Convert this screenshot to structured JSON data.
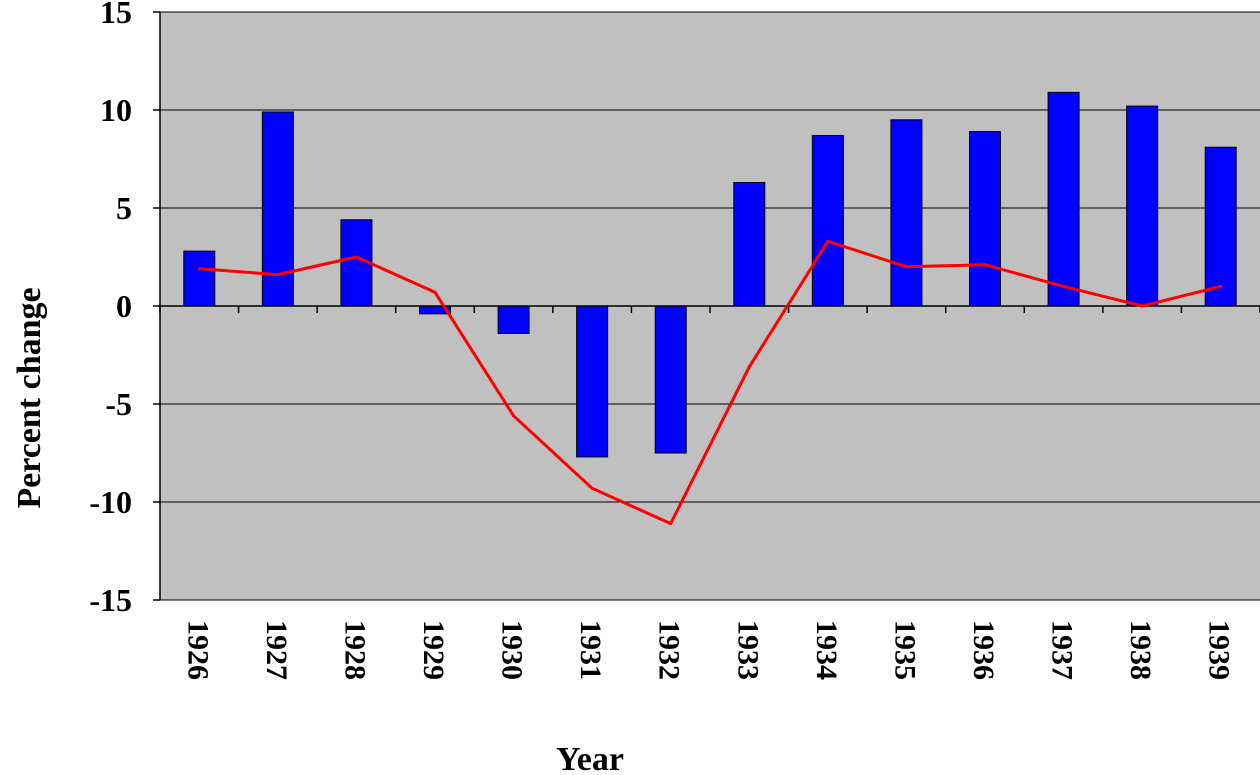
{
  "chart_data": {
    "type": "bar",
    "title": "",
    "xlabel": "Year",
    "ylabel": "Percent change",
    "ylim": [
      -15,
      15
    ],
    "yticks": [
      15,
      10,
      5,
      0,
      -5,
      -10,
      -15
    ],
    "ytick_labels": [
      "15",
      "10",
      "5",
      "0",
      "-5",
      "-10",
      "-15"
    ],
    "grid": true,
    "legend": "none",
    "categories": [
      "1926",
      "1927",
      "1928",
      "1929",
      "1930",
      "1931",
      "1932",
      "1933",
      "1934",
      "1935",
      "1936",
      "1937",
      "1938",
      "1939"
    ],
    "series": [
      {
        "type": "bar",
        "color": "#0000ff",
        "values": [
          2.8,
          9.9,
          4.4,
          -0.4,
          -1.4,
          -7.7,
          -7.5,
          6.3,
          8.7,
          9.5,
          8.9,
          10.9,
          10.2,
          8.1
        ]
      },
      {
        "type": "line",
        "color": "#ff0000",
        "values": [
          1.9,
          1.6,
          2.5,
          0.7,
          -5.6,
          -9.3,
          -11.1,
          -3.1,
          3.3,
          2.0,
          2.1,
          1.0,
          0.0,
          1.0
        ]
      }
    ],
    "colors": {
      "plot_background": "#c0c0c0",
      "gridline": "#000000",
      "bar_outline": "#000000"
    }
  }
}
